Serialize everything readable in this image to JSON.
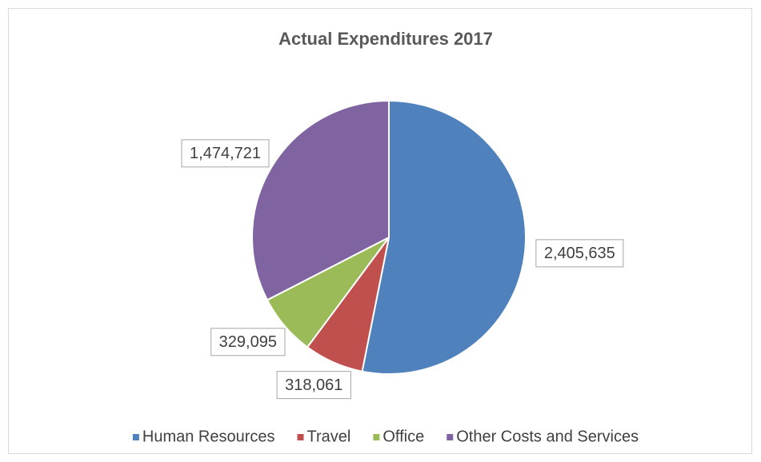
{
  "chart_data": {
    "type": "pie",
    "title": "Actual Expenditures 2017",
    "categories": [
      "Human Resources",
      "Travel",
      "Office",
      "Other Costs and Services"
    ],
    "values": [
      2405635,
      318061,
      329095,
      1474721
    ],
    "value_labels": [
      "2,405,635",
      "318,061",
      "329,095",
      "1,474,721"
    ],
    "colors": [
      "#4f81bd",
      "#c0504d",
      "#9bbb59",
      "#8064a2"
    ],
    "legend": "bottom"
  }
}
